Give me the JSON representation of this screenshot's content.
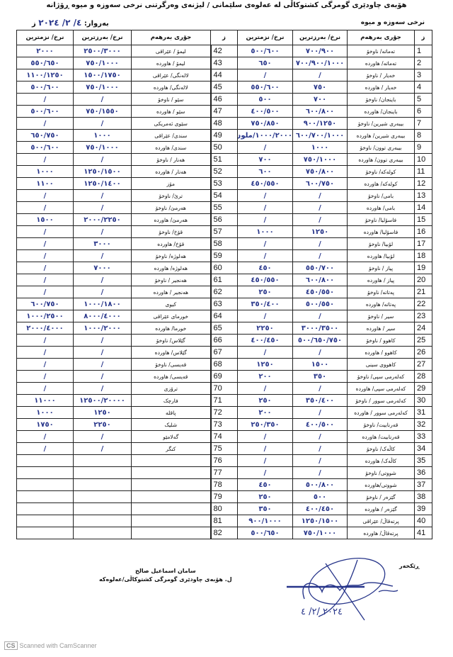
{
  "document": {
    "title": "هۆبەی چاودێری گومرگی کشتوکاڵی لە عەلوەی سلێمانی / لیژنەی وەرگرتنی نرخی سەوزە و میوە ڕۆژانە",
    "subtitle": "نرخی سەوزە و میوە",
    "date_label": "بەروار:",
    "date_value": "٤/ ٢/ ٢٠٢٤",
    "date_suffix": "ز"
  },
  "table": {
    "headers": {
      "no": "ز",
      "name": "جۆری بەرهەم",
      "high": "نرخ/ بەرزترین",
      "low": "نرخ/ نزمترین"
    },
    "right_rows": [
      {
        "no": "1",
        "name": "تەماتە/ ناوخۆ",
        "high": "٧٠٠/٩٠٠",
        "low": "٥٠٠/٦٠٠"
      },
      {
        "no": "2",
        "name": "تەماتە/ هاوردە",
        "high": "٧٠٠/٩٠٠/١٠٠٠",
        "low": "٦٥٠"
      },
      {
        "no": "3",
        "name": "خەیار / ناوخۆ",
        "high": "/",
        "low": "/"
      },
      {
        "no": "4",
        "name": "خەیار / هاوردە",
        "high": "٧٥٠",
        "low": "٥٥٠/٦٠٠"
      },
      {
        "no": "5",
        "name": "باینجان/ ناوخۆ",
        "high": "٧٠٠",
        "low": "٥٠٠"
      },
      {
        "no": "6",
        "name": "باینجان/ هاوردە",
        "high": "٦٠٠/٨٠٠",
        "low": "٤٠٠/٥٠٠"
      },
      {
        "no": "7",
        "name": "بیبەری شیرین/ ناوخۆ",
        "high": "٩٠٠/١٢٥٠",
        "low": "٧٥٠/٨٥٠"
      },
      {
        "no": "8",
        "name": "بیبەری شیرین/ هاوردە",
        "high": "٦٠٠/٧٠٠/١٠٠٠",
        "low": "١٠٠٠/٢٠٠٠/ملون"
      },
      {
        "no": "9",
        "name": "بیبەری توون/ ناوخۆ",
        "high": "١٠٠٠",
        "low": "/"
      },
      {
        "no": "10",
        "name": "بیبەری توون/ هاوردە",
        "high": "٧٥٠/١٠٠٠",
        "low": "٧٠٠"
      },
      {
        "no": "11",
        "name": "کولەکە/ ناوخۆ",
        "high": "٧٥٠/٨٠٠",
        "low": "٦٠٠"
      },
      {
        "no": "12",
        "name": "کولەکە/ هاوردە",
        "high": "٦٠٠/٧٥٠",
        "low": "٤٥٠/٥٥٠"
      },
      {
        "no": "13",
        "name": "بامی/ ناوخۆ",
        "high": "/",
        "low": "/"
      },
      {
        "no": "14",
        "name": "بامی/ هاوردە",
        "high": "/",
        "low": "/"
      },
      {
        "no": "15",
        "name": "فاسۆلیا/ ناوخۆ",
        "high": "/",
        "low": "/"
      },
      {
        "no": "16",
        "name": "فاسۆلیا/ هاوردە",
        "high": "١٢٥٠",
        "low": "١٠٠٠"
      },
      {
        "no": "17",
        "name": "لۆبیا/ ناوخۆ",
        "high": "/",
        "low": "/"
      },
      {
        "no": "18",
        "name": "لۆبیا/ هاوردە",
        "high": "/",
        "low": "/"
      },
      {
        "no": "19",
        "name": "پیاز / ناوخۆ",
        "high": "٥٥٠/٧٠٠",
        "low": "٤٥٠"
      },
      {
        "no": "20",
        "name": "پیاز / هاوردە",
        "high": "٦٠٠/٨٠٠",
        "low": "٤٥٠/٥٥٠"
      },
      {
        "no": "21",
        "name": "پەتاتە/ ناوخۆ",
        "high": "٤٥٠/٥٥٠",
        "low": "٢٥٠"
      },
      {
        "no": "22",
        "name": "پەتاتە/ هاوردە",
        "high": "٥٠٠/٥٥٠",
        "low": "٣٥٠/٤٠٠"
      },
      {
        "no": "23",
        "name": "سیر / ناوخۆ",
        "high": "/",
        "low": "/"
      },
      {
        "no": "24",
        "name": "سیر / هاوردە",
        "high": "٣٠٠٠/٣٥٠٠",
        "low": "٢٢٥٠"
      },
      {
        "no": "25",
        "name": "کاهوو / ناوخۆ",
        "high": "٥٠٠/٦٥٠/٧٥٠",
        "low": "٤٠٠/٤٥٠"
      },
      {
        "no": "26",
        "name": "کاهوو / هاوردە",
        "high": "/",
        "low": "/"
      },
      {
        "no": "27",
        "name": "کاهووی سینی",
        "high": "١٥٠٠",
        "low": "١٢٥٠"
      },
      {
        "no": "28",
        "name": "کەلەرمی سپی/ ناوخۆ",
        "high": "٣٥٠",
        "low": "٢٠٠"
      },
      {
        "no": "29",
        "name": "کەلەرمی سپی/ هاوردە",
        "high": "/",
        "low": "/"
      },
      {
        "no": "30",
        "name": "کەلەرمی سوور / ناوخۆ",
        "high": "٣٥٠/٤٠٠",
        "low": "٢٥٠"
      },
      {
        "no": "31",
        "name": "کەلەرمی سوور / هاوردە",
        "high": "/",
        "low": "٢٠٠"
      },
      {
        "no": "32",
        "name": "قەرنابیت/ ناوخۆ",
        "high": "٤٠٠/٥٠٠",
        "low": "٢٥٠/٣٥٠"
      },
      {
        "no": "33",
        "name": "قەرنابیت/ هاوردە",
        "high": "/",
        "low": "/"
      },
      {
        "no": "34",
        "name": "کاڵەک/ ناوخۆ",
        "high": "/",
        "low": "/"
      },
      {
        "no": "35",
        "name": "کاڵەک/ هاوردە",
        "high": "/",
        "low": "/"
      },
      {
        "no": "36",
        "name": "شووتی/ ناوخۆ",
        "high": "/",
        "low": "/"
      },
      {
        "no": "37",
        "name": "شووتی/هاوردە",
        "high": "٥٠٠/٨٠٠",
        "low": "٤٥٠"
      },
      {
        "no": "38",
        "name": "گێزەر / ناوخۆ",
        "high": "٥٠٠",
        "low": "٢٥٠"
      },
      {
        "no": "39",
        "name": "گێزەر / هاوردە",
        "high": "٤٠٠/٤٥٠",
        "low": "٣٥٠"
      },
      {
        "no": "40",
        "name": "پرتەقاڵ/ عێراقی",
        "high": "١٢٥٠/١٥٠٠",
        "low": "٩٠٠/١٠٠٠"
      },
      {
        "no": "41",
        "name": "پرتەقاڵ/ هاوردە",
        "high": "٧٥٠/١٠٠٠",
        "low": "٥٠٠/٦٥٠"
      }
    ],
    "left_rows": [
      {
        "no": "42",
        "name": "لیمۆ / عێراقی",
        "high": "٢٥٠٠/٣٠٠٠",
        "low": "٢٠٠٠"
      },
      {
        "no": "43",
        "name": "لیمۆ / هاوردە",
        "high": "٧٥٠/١٠٠٠",
        "low": "٥٥٠/٦٥٠"
      },
      {
        "no": "44",
        "name": "لالەنگی/ عێراقی",
        "high": "١٥٠٠/١٧٥٠",
        "low": "١١٠٠/١٢٥٠"
      },
      {
        "no": "45",
        "name": "لالەنگی/ هاوردە",
        "high": "٧٥٠/١٠٠٠",
        "low": "٥٠٠/٦٠٠"
      },
      {
        "no": "46",
        "name": "سێو / ناوخۆ",
        "high": "/",
        "low": "/"
      },
      {
        "no": "47",
        "name": "سێو / هاوردە",
        "high": "٧٥٠/١٥٥٠",
        "low": "٥٠٠/٦٠٠"
      },
      {
        "no": "48",
        "name": "سێوی ئەمریکی",
        "high": "/",
        "low": "/"
      },
      {
        "no": "49",
        "name": "سندی/ عێراقی",
        "high": "١٠٠٠",
        "low": "٦٥٠/٧٥٠"
      },
      {
        "no": "50",
        "name": "سندی/ هاوردە",
        "high": "٧٥٠/١٠٠٠",
        "low": "٥٠٠/٦٠٠"
      },
      {
        "no": "51",
        "name": "هەنار / ناوخۆ",
        "high": "/",
        "low": "/"
      },
      {
        "no": "52",
        "name": "هەنار / هاوردە",
        "high": "١٢٥٠/١٥٠٠",
        "low": "١٠٠٠"
      },
      {
        "no": "53",
        "name": "مۆز",
        "high": "١٢٥٠/١٤٠٠",
        "low": "١١٠٠"
      },
      {
        "no": "54",
        "name": "ترێ/ ناوخۆ",
        "high": "/",
        "low": "/"
      },
      {
        "no": "55",
        "name": "هەرمێ/ ناوخۆ",
        "high": "/",
        "low": "/"
      },
      {
        "no": "56",
        "name": "هەرمێ/ هاوردە",
        "high": "٢٠٠٠/٢٢٥٠",
        "low": "١٥٠٠"
      },
      {
        "no": "57",
        "name": "قۆخ/ ناوخۆ",
        "high": "/",
        "low": "/"
      },
      {
        "no": "58",
        "name": "قۆخ/ هاوردە",
        "high": "٣٠٠٠",
        "low": "/"
      },
      {
        "no": "59",
        "name": "هەلوژە/ ناوخۆ",
        "high": "/",
        "low": "/"
      },
      {
        "no": "60",
        "name": "هەلوژە/ هاوردە",
        "high": "٧٠٠٠",
        "low": "/"
      },
      {
        "no": "61",
        "name": "هەنجیر / ناوخۆ",
        "high": "/",
        "low": "/"
      },
      {
        "no": "62",
        "name": "هەنجیر / هاوردە",
        "high": "/",
        "low": "/"
      },
      {
        "no": "63",
        "name": "کیوی",
        "high": "١٠٠٠/١٨٠٠",
        "low": "٦٠٠/٧٥٠"
      },
      {
        "no": "64",
        "name": "خورمای عێراقی",
        "high": "٨٠٠٠/٤٠٠٠",
        "low": "١٠٠٠/٢٥٠٠"
      },
      {
        "no": "65",
        "name": "خورما/ هاوردە",
        "high": "١٠٠٠/٢٠٠٠",
        "low": "٢٠٠٠/٤٠٠٠"
      },
      {
        "no": "66",
        "name": "گێلاس/ ناوخۆ",
        "high": "/",
        "low": "/"
      },
      {
        "no": "67",
        "name": "گێلاس/ هاوردە",
        "high": "/",
        "low": "/"
      },
      {
        "no": "68",
        "name": "قەیسی/ ناوخۆ",
        "high": "/",
        "low": "/"
      },
      {
        "no": "69",
        "name": "قەیسی/ هاوردە",
        "high": "/",
        "low": "/"
      },
      {
        "no": "70",
        "name": "ترۆزی",
        "high": "/",
        "low": "/"
      },
      {
        "no": "71",
        "name": "فارچک",
        "high": "١٢٥٠٠/٢٠٠٠٠",
        "low": "١١٠٠٠"
      },
      {
        "no": "72",
        "name": "پاقلە",
        "high": "١٢٥٠",
        "low": "١٠٠٠"
      },
      {
        "no": "73",
        "name": "شلیک",
        "high": "٢٢٥٠",
        "low": "١٧٥٠"
      },
      {
        "no": "74",
        "name": "گەلامێو",
        "high": "/",
        "low": "/"
      },
      {
        "no": "75",
        "name": "کنگر",
        "high": "/",
        "low": "/"
      },
      {
        "no": "76",
        "name": "",
        "high": "",
        "low": ""
      },
      {
        "no": "77",
        "name": "",
        "high": "",
        "low": ""
      },
      {
        "no": "78",
        "name": "",
        "high": "",
        "low": ""
      },
      {
        "no": "79",
        "name": "",
        "high": "",
        "low": ""
      },
      {
        "no": "80",
        "name": "",
        "high": "",
        "low": ""
      },
      {
        "no": "81",
        "name": "",
        "high": "",
        "low": ""
      },
      {
        "no": "82",
        "name": "",
        "high": "",
        "low": ""
      }
    ]
  },
  "footer": {
    "signer_name": "سامان اسماعیل صالح",
    "signer_title": "ل. هۆبەی چاودێری گومرگی کشتوکاڵی/عەلوەکە",
    "sender_label": "ڕێکخەر",
    "signature_date": "٢٠٢٤ /٢/ ٤",
    "watermark_logo": "CS",
    "watermark_text": "Scanned with CamScanner"
  },
  "colors": {
    "ink": "#111111",
    "handwriting": "#27358a"
  }
}
